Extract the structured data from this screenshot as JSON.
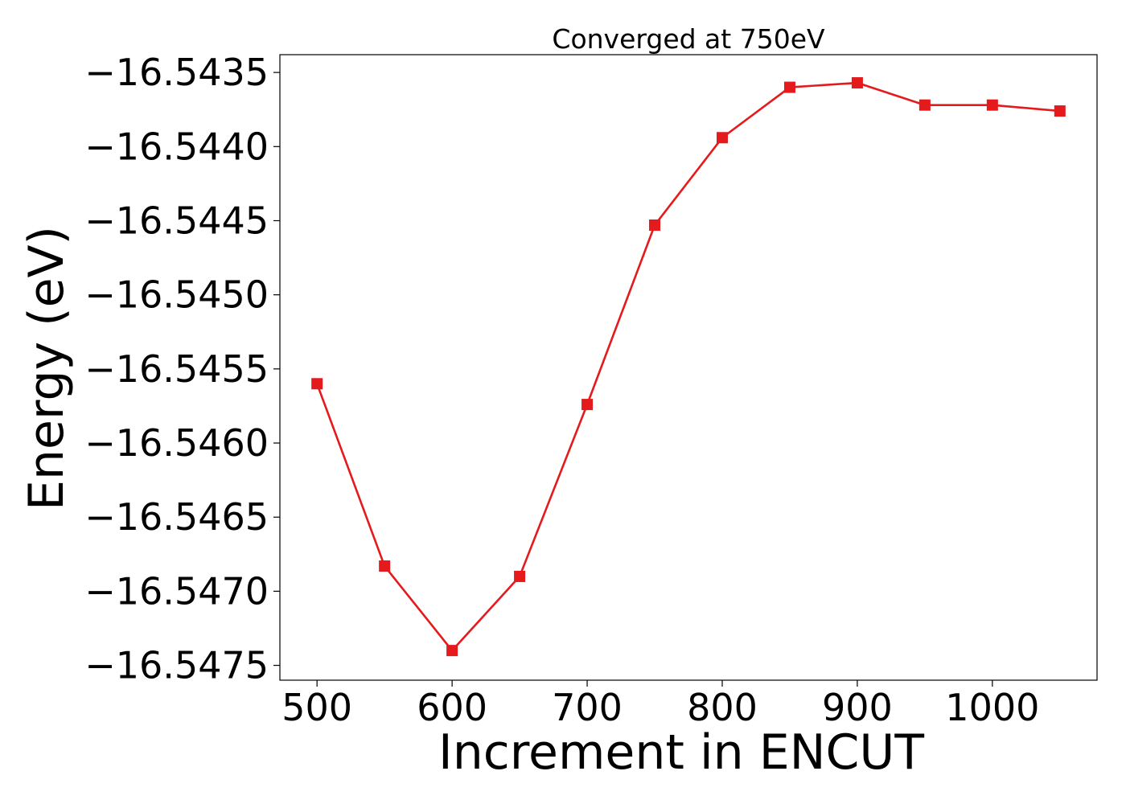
{
  "chart_data": {
    "type": "line",
    "title": "Converged at 750eV",
    "xlabel": "Increment in ENCUT",
    "ylabel": "Energy (eV)",
    "xlim": [
      472.5,
      1077.5
    ],
    "ylim": [
      -16.5476,
      -16.54338
    ],
    "xticks": [
      500,
      600,
      700,
      800,
      900,
      1000
    ],
    "xtick_labels": [
      "500",
      "600",
      "700",
      "800",
      "900",
      "1000"
    ],
    "yticks": [
      -16.5475,
      -16.547,
      -16.5465,
      -16.546,
      -16.5455,
      -16.545,
      -16.5445,
      -16.544,
      -16.5435
    ],
    "ytick_labels": [
      "−16.5475",
      "−16.5470",
      "−16.5465",
      "−16.5460",
      "−16.5455",
      "−16.5450",
      "−16.5445",
      "−16.5440",
      "−16.5435"
    ],
    "grid": false,
    "series": [
      {
        "color": "#e41a1c",
        "marker": "square",
        "x": [
          500,
          550,
          600,
          650,
          700,
          750,
          800,
          850,
          900,
          950,
          1000,
          1050
        ],
        "y": [
          -16.5456,
          -16.54683,
          -16.5474,
          -16.5469,
          -16.54574,
          -16.54453,
          -16.54394,
          -16.5436,
          -16.54357,
          -16.54372,
          -16.54372,
          -16.54376
        ]
      }
    ]
  }
}
